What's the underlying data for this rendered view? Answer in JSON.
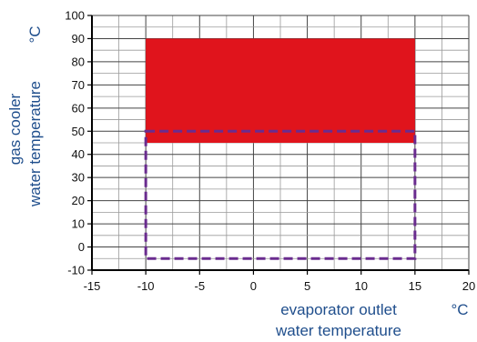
{
  "chart_data": {
    "type": "area",
    "title": "",
    "xlabel_line1": "evaporator outlet",
    "xlabel_line2": "water temperature",
    "xunit": "°C",
    "ylabel_line1": "gas cooler",
    "ylabel_line2": "water temperature",
    "yunit": "°C",
    "xlim": [
      -15,
      20
    ],
    "ylim": [
      -10,
      100
    ],
    "xticks": [
      -15,
      -10,
      -5,
      0,
      5,
      10,
      15,
      20
    ],
    "yticks": [
      -10,
      0,
      10,
      20,
      30,
      40,
      50,
      60,
      70,
      80,
      90,
      100
    ],
    "grid": true,
    "regions": [
      {
        "kind": "filled",
        "color": "#e0141c",
        "x": [
          -10,
          15
        ],
        "y": [
          45,
          90
        ]
      },
      {
        "kind": "dashed-outline",
        "color": "#6a2c8f",
        "x": [
          -10,
          15
        ],
        "y": [
          -5,
          50
        ]
      }
    ]
  }
}
